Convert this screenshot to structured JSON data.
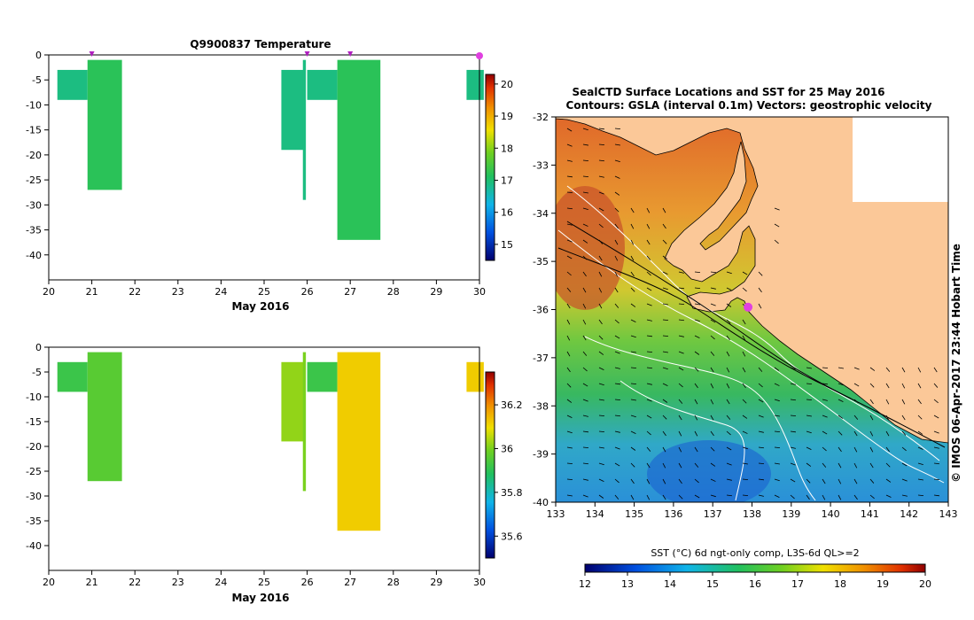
{
  "chart_data": [
    {
      "type": "bar",
      "panel": "temperature",
      "title": "Q9900837  Temperature",
      "xlabel": "May 2016",
      "xlim": [
        20,
        30
      ],
      "ylim": [
        -45,
        0
      ],
      "x_ticks": [
        20,
        21,
        22,
        23,
        24,
        25,
        26,
        27,
        28,
        29,
        30
      ],
      "y_ticks": [
        0,
        -5,
        -10,
        -15,
        -20,
        -25,
        -30,
        -35,
        -40
      ],
      "profile_markers_x": [
        21.0,
        26.0,
        27.0,
        30.0
      ],
      "bars": [
        {
          "x0": 20.2,
          "x1": 20.9,
          "top": -3,
          "bottom": -9,
          "value": 16.9
        },
        {
          "x0": 20.9,
          "x1": 21.7,
          "top": -1,
          "bottom": -27,
          "value": 17.2
        },
        {
          "x0": 25.4,
          "x1": 25.95,
          "top": -3,
          "bottom": -19,
          "value": 16.9
        },
        {
          "x0": 25.9,
          "x1": 25.97,
          "top": -1,
          "bottom": -29,
          "value": 16.9
        },
        {
          "x0": 26.0,
          "x1": 26.7,
          "top": -3,
          "bottom": -9,
          "value": 16.9
        },
        {
          "x0": 26.7,
          "x1": 27.7,
          "top": -1,
          "bottom": -37,
          "value": 17.2
        },
        {
          "x0": 29.7,
          "x1": 30.1,
          "top": -3,
          "bottom": -9,
          "value": 16.9
        }
      ],
      "colorbar": {
        "min": 14.5,
        "max": 20.3,
        "ticks": [
          15,
          16,
          17,
          18,
          19,
          20
        ]
      }
    },
    {
      "type": "bar",
      "panel": "salinity",
      "xlabel": "May 2016",
      "xlim": [
        20,
        30
      ],
      "ylim": [
        -45,
        0
      ],
      "x_ticks": [
        20,
        21,
        22,
        23,
        24,
        25,
        26,
        27,
        28,
        29,
        30
      ],
      "y_ticks": [
        0,
        -5,
        -10,
        -15,
        -20,
        -25,
        -30,
        -35,
        -40
      ],
      "bars": [
        {
          "x0": 20.2,
          "x1": 20.9,
          "top": -3,
          "bottom": -9,
          "value": 35.92
        },
        {
          "x0": 20.9,
          "x1": 21.7,
          "top": -1,
          "bottom": -27,
          "value": 35.96
        },
        {
          "x0": 25.4,
          "x1": 25.95,
          "top": -3,
          "bottom": -19,
          "value": 36.02
        },
        {
          "x0": 25.9,
          "x1": 25.97,
          "top": -1,
          "bottom": -29,
          "value": 36.0
        },
        {
          "x0": 26.0,
          "x1": 26.7,
          "top": -3,
          "bottom": -9,
          "value": 35.92
        },
        {
          "x0": 26.7,
          "x1": 27.7,
          "top": -1,
          "bottom": -37,
          "value": 36.12
        },
        {
          "x0": 29.7,
          "x1": 30.1,
          "top": -3,
          "bottom": -9,
          "value": 36.12
        }
      ],
      "colorbar": {
        "min": 35.5,
        "max": 36.35,
        "ticks": [
          35.6,
          35.8,
          36,
          36.2
        ]
      }
    },
    {
      "type": "heatmap",
      "panel": "sst-map",
      "title": "SealCTD Surface Locations and SST for 25 May 2016",
      "subtitle": "Contours: GSLA (interval 0.1m) Vectors: geostrophic velocity",
      "side_label": "© IMOS 06-Apr-2017 23:44 Hobart Time",
      "xlim": [
        133,
        143
      ],
      "ylim": [
        -40,
        -32
      ],
      "x_ticks": [
        133,
        134,
        135,
        136,
        137,
        138,
        139,
        140,
        141,
        142,
        143
      ],
      "y_ticks": [
        -32,
        -33,
        -34,
        -35,
        -36,
        -37,
        -38,
        -39,
        -40
      ],
      "seal_positions": [
        {
          "lon": 137.9,
          "lat": -35.95
        }
      ],
      "colorbar": {
        "label": "SST (°C) 6d ngt-only comp, L3S-6d QL>=2",
        "min": 12,
        "max": 20,
        "ticks": [
          12,
          13,
          14,
          15,
          16,
          17,
          18,
          19,
          20
        ]
      },
      "sst_bands": [
        {
          "lat": -32.5,
          "value": 19.2
        },
        {
          "lat": -35.0,
          "value": 18.5
        },
        {
          "lat": -36.5,
          "value": 17.6
        },
        {
          "lat": -37.5,
          "value": 16.4
        },
        {
          "lat": -38.5,
          "value": 15.6
        },
        {
          "lat": -39.5,
          "value": 14.8
        }
      ]
    }
  ]
}
